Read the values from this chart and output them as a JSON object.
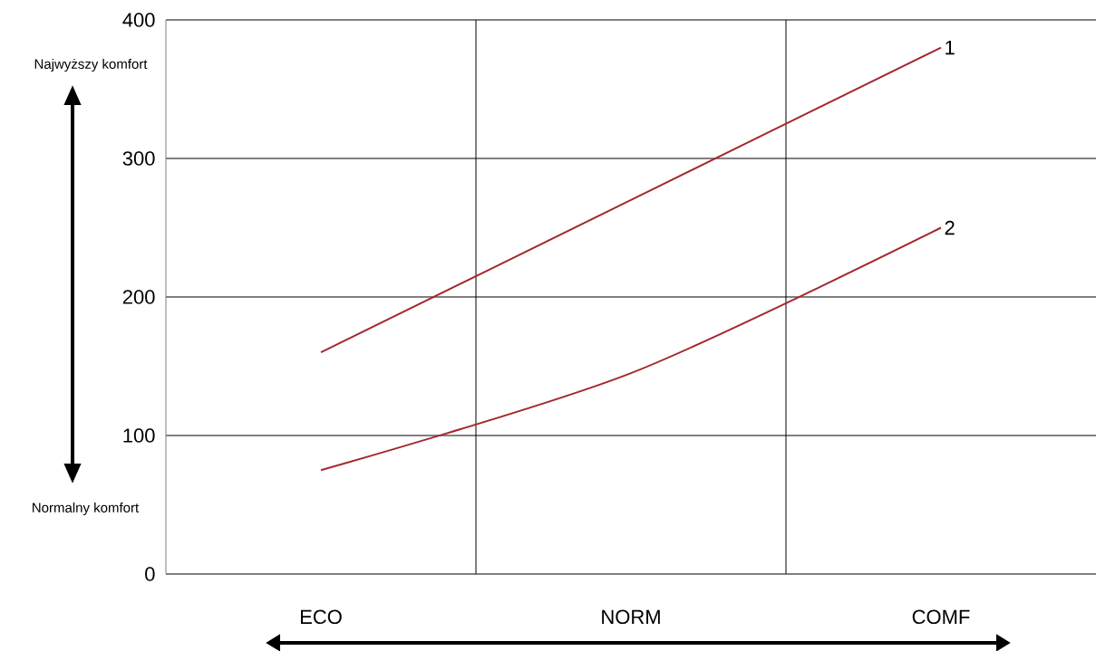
{
  "chart_data": {
    "type": "line",
    "categories": [
      "ECO",
      "NORM",
      "COMF"
    ],
    "ylim": [
      0,
      400
    ],
    "yticks": [
      0,
      100,
      200,
      300,
      400
    ],
    "grid": true,
    "marker": "none",
    "line_style": "solid",
    "annotations": [
      "Najwyższy komfort",
      "Normalny komfort"
    ],
    "series": [
      {
        "name": "1",
        "color": "#a3282d",
        "values": [
          160,
          270,
          380
        ]
      },
      {
        "name": "2",
        "color": "#a3282d",
        "values": [
          75,
          145,
          250
        ]
      }
    ]
  }
}
